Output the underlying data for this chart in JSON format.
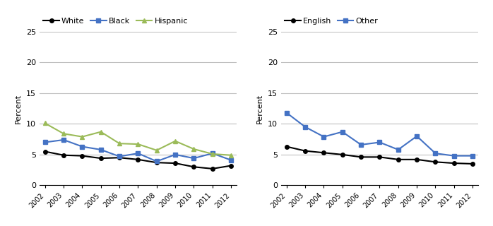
{
  "years": [
    2002,
    2003,
    2004,
    2005,
    2006,
    2007,
    2008,
    2009,
    2010,
    2011,
    2012
  ],
  "left": {
    "White": [
      5.5,
      4.9,
      4.8,
      4.4,
      4.5,
      4.2,
      3.7,
      3.6,
      3.0,
      2.7,
      3.2
    ],
    "Black": [
      7.0,
      7.4,
      6.3,
      5.8,
      4.7,
      5.2,
      3.9,
      5.0,
      4.4,
      5.2,
      4.1
    ],
    "Hispanic": [
      10.1,
      8.4,
      7.9,
      8.7,
      6.8,
      6.7,
      5.7,
      7.2,
      5.9,
      5.1,
      4.9
    ]
  },
  "right": {
    "English": [
      6.3,
      5.6,
      5.3,
      5.0,
      4.6,
      4.6,
      4.2,
      4.2,
      3.8,
      3.6,
      3.5
    ],
    "Other": [
      11.8,
      9.5,
      7.9,
      8.7,
      6.6,
      7.0,
      5.8,
      8.0,
      5.2,
      4.8,
      4.8
    ]
  },
  "left_colors": {
    "White": "#000000",
    "Black": "#4472c4",
    "Hispanic": "#9bbb59"
  },
  "right_colors": {
    "English": "#000000",
    "Other": "#4472c4"
  },
  "left_markers": {
    "White": "o",
    "Black": "s",
    "Hispanic": "^"
  },
  "right_markers": {
    "English": "o",
    "Other": "s"
  },
  "ylabel": "Percent",
  "ylim": [
    0,
    25
  ],
  "yticks": [
    0,
    5,
    10,
    15,
    20,
    25
  ],
  "background_color": "#ffffff",
  "grid_color": "#c0c0c0"
}
